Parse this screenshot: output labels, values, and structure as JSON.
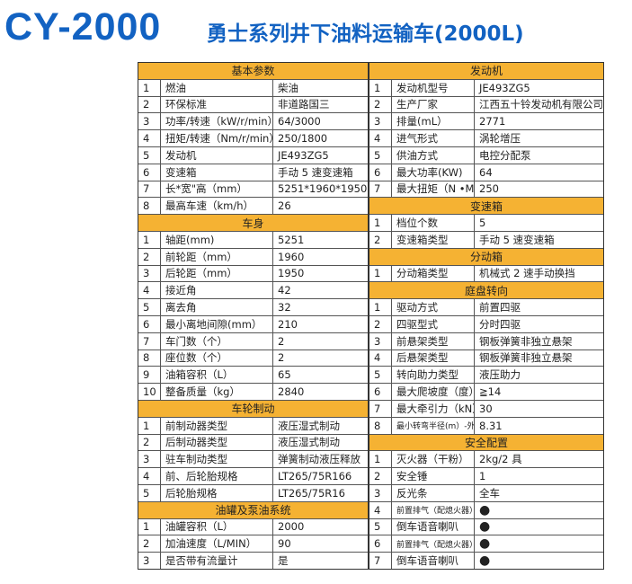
{
  "header": {
    "model": "CY-2000",
    "title": "勇士系列井下油料运输车(2000L)"
  },
  "left": [
    {
      "section": "基本参数",
      "rows": [
        [
          "1",
          "燃油",
          "柴油"
        ],
        [
          "2",
          "环保标准",
          "非道路国三"
        ],
        [
          "3",
          "功率/转速（kW/r/min）",
          "64/3000"
        ],
        [
          "4",
          "扭矩/转速（Nm/r/min）",
          "250/1800"
        ],
        [
          "5",
          "发动机",
          "JE493ZG5"
        ],
        [
          "6",
          "变速箱",
          "手动 5 速变速箱"
        ],
        [
          "7",
          "长*宽\"高（mm）",
          "5251*1960*1950"
        ],
        [
          "8",
          "最高车速（km/h）",
          "26"
        ]
      ]
    },
    {
      "section": "车身",
      "rows": [
        [
          "1",
          "轴距(mm)",
          "5251"
        ],
        [
          "2",
          "前轮距（mm）",
          "1960"
        ],
        [
          "3",
          "后轮距（mm）",
          "1950"
        ],
        [
          "4",
          "接近角",
          "42"
        ],
        [
          "5",
          "离去角",
          "32"
        ],
        [
          "6",
          "最小离地间隙(mm）",
          "210"
        ],
        [
          "7",
          "车门数（个）",
          "2"
        ],
        [
          "8",
          "座位数（个）",
          "2"
        ],
        [
          "9",
          "油箱容积（L）",
          "65"
        ],
        [
          "10",
          "整备质量（kg）",
          "2840"
        ]
      ]
    },
    {
      "section": "车轮制动",
      "rows": [
        [
          "1",
          "前制动器类型",
          "液压湿式制动"
        ],
        [
          "2",
          "后制动器类型",
          "液压湿式制动"
        ],
        [
          "3",
          "驻车制动类型",
          "弹簧制动液压释放"
        ],
        [
          "4",
          "前、后轮胎规格",
          "LT265/75R166"
        ],
        [
          "5",
          "后轮胎规格",
          "LT265/75R16"
        ]
      ]
    },
    {
      "section": "油罐及泵油系统",
      "rows": [
        [
          "1",
          "油罐容积（L）",
          "2000"
        ],
        [
          "2",
          "加油速度（L/MIN）",
          "90"
        ],
        [
          "3",
          "是否带有流量计",
          "是"
        ]
      ]
    }
  ],
  "right": [
    {
      "section": "发动机",
      "rows": [
        [
          "1",
          "发动机型号",
          "JE493ZG5"
        ],
        [
          "2",
          "生产厂家",
          "江西五十铃发动机有限公司"
        ],
        [
          "3",
          "排量(mL）",
          "2771"
        ],
        [
          "4",
          "进气形式",
          "涡轮增压"
        ],
        [
          "5",
          "供油方式",
          "电控分配泵"
        ],
        [
          "6",
          "最大功率(KW)",
          "64"
        ],
        [
          "7",
          "最大扭矩（N •M）",
          "250"
        ]
      ]
    },
    {
      "section": "变速箱",
      "rows": [
        [
          "1",
          "档位个数",
          "5"
        ],
        [
          "2",
          "变速箱类型",
          "手动 5 速变速箱"
        ]
      ]
    },
    {
      "section": "分动箱",
      "rows": [
        [
          "1",
          "分动箱类型",
          "机械式 2 速手动换挡"
        ]
      ]
    },
    {
      "section": "庭盘转向",
      "rows": [
        [
          "1",
          "驱动方式",
          "前置四驱"
        ],
        [
          "2",
          "四驱型式",
          "分时四驱"
        ],
        [
          "3",
          "前悬架类型",
          "钢板弹簧非独立悬架"
        ],
        [
          "4",
          "后悬架类型",
          "钢板弹簧非独立悬架"
        ],
        [
          "5",
          "转向助力类型",
          "液压助力"
        ],
        [
          "6",
          "最大爬坡度（度））",
          "≧14"
        ],
        [
          "7",
          "最大牵引力（kN）",
          "30"
        ],
        [
          "8",
          "最小转弯半径(m）-外缘",
          "8.31"
        ]
      ]
    },
    {
      "section": "安全配置",
      "rows": [
        [
          "1",
          "灭火器（干粉）",
          "2kg/2 具"
        ],
        [
          "2",
          "安全锤",
          "1"
        ],
        [
          "3",
          "反光条",
          "全车"
        ],
        [
          "4",
          "前置排气（配熄火器）",
          "●"
        ],
        [
          "5",
          "倒车语音喇叭",
          "●"
        ],
        [
          "6",
          "前置排气（配熄火器）",
          "●"
        ],
        [
          "7",
          "倒车语音喇叭",
          "●"
        ]
      ]
    }
  ]
}
